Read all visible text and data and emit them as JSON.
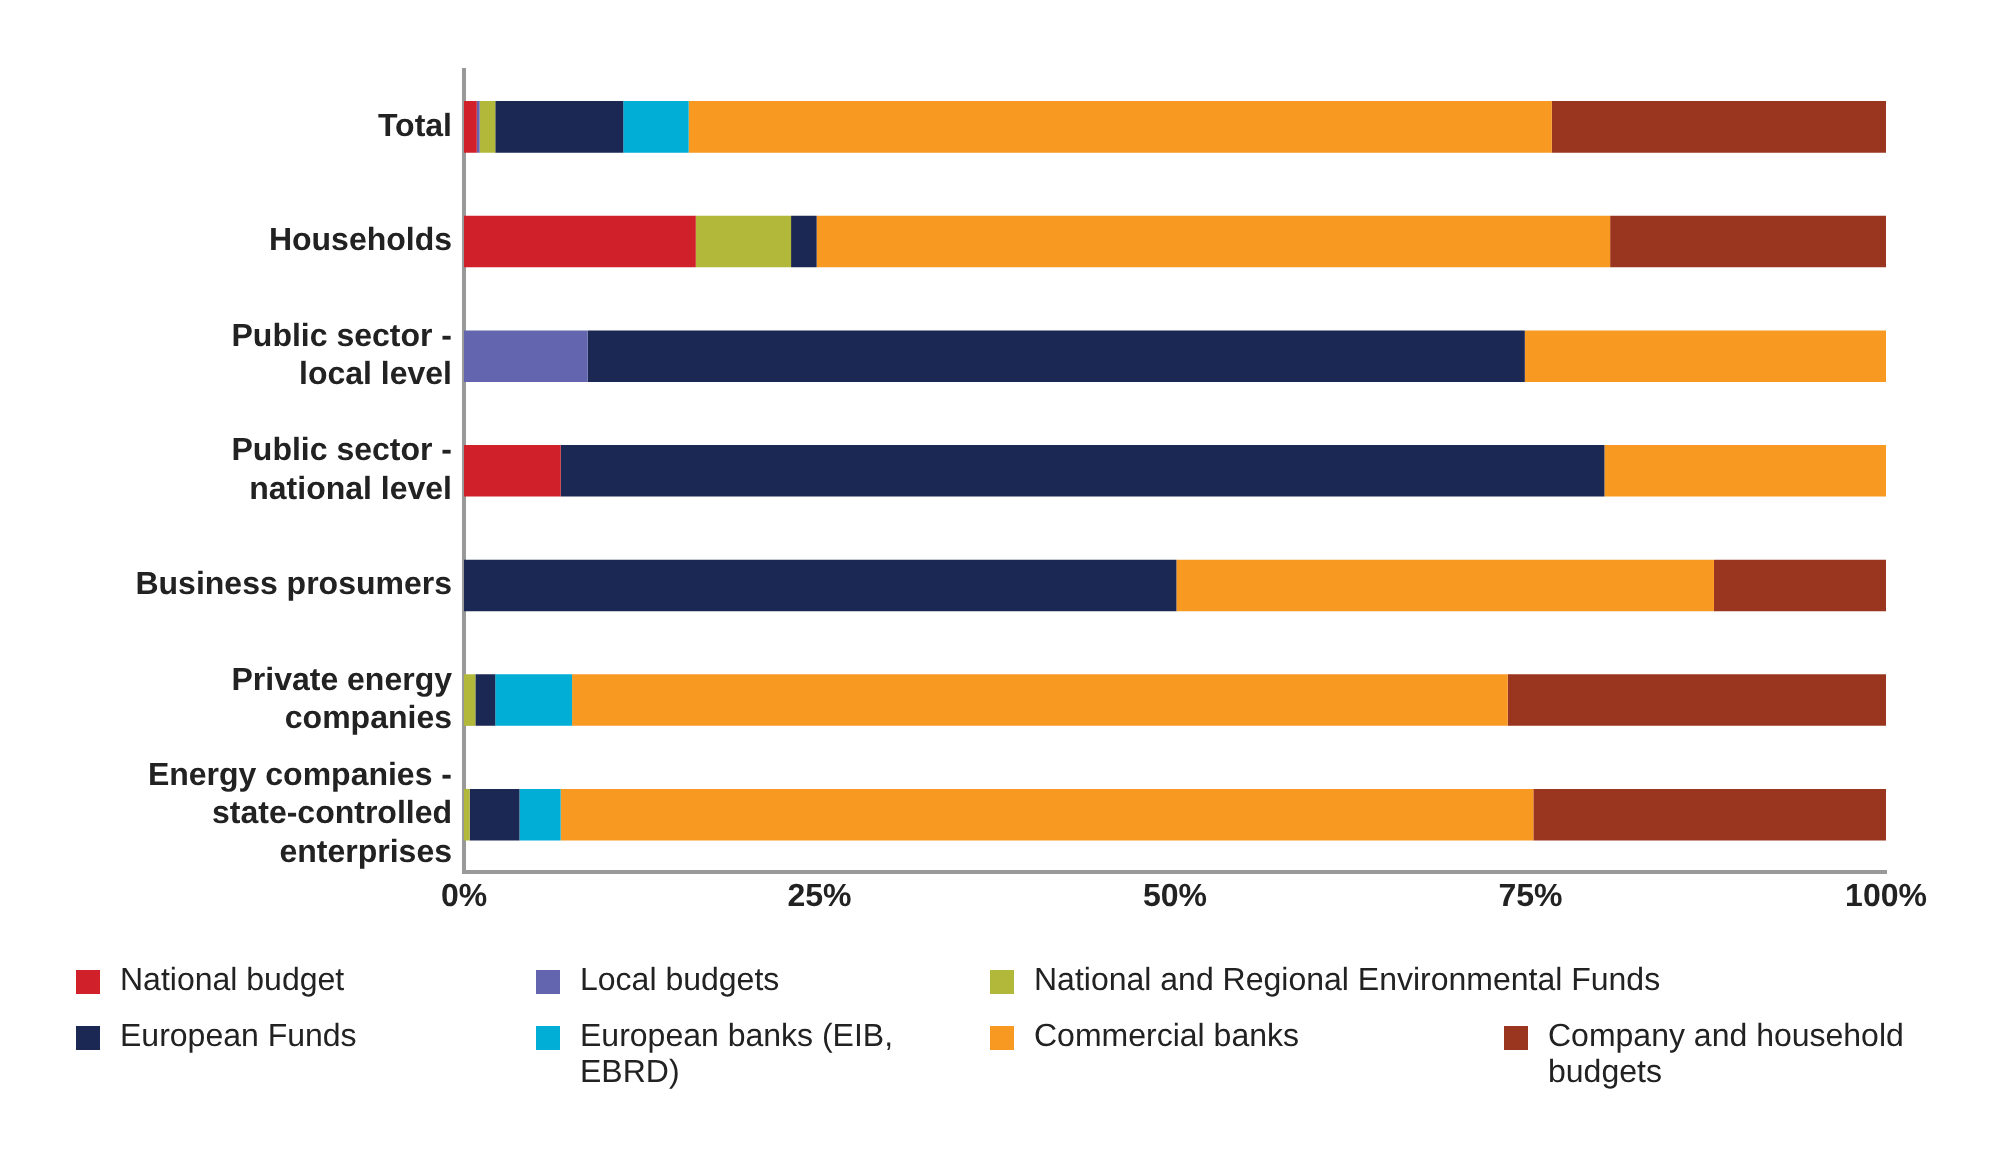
{
  "chart_data": {
    "type": "bar",
    "orientation": "horizontal",
    "stacked": true,
    "categories": [
      "Total",
      "Households",
      "Public sector - local level",
      "Public sector - national level",
      "Business prosumers",
      "Private energy companies",
      "Energy companies - state-controlled enterprises"
    ],
    "series": [
      {
        "name": "National budget",
        "color": "#d0202a",
        "values": [
          0.9,
          16.3,
          0,
          6.8,
          0,
          0,
          0
        ]
      },
      {
        "name": "Local budgets",
        "color": "#6366ae",
        "values": [
          0.2,
          0,
          8.7,
          0,
          0,
          0,
          0
        ]
      },
      {
        "name": "National and Regional Environmental Funds",
        "color": "#b2b83a",
        "values": [
          1.1,
          6.7,
          0,
          0,
          0,
          0.8,
          0.4
        ]
      },
      {
        "name": "European Funds",
        "color": "#1b2853",
        "values": [
          9.0,
          1.8,
          65.9,
          73.4,
          50.1,
          1.4,
          3.5
        ]
      },
      {
        "name": "European banks (EIB, EBRD)",
        "color": "#00aed6",
        "values": [
          4.6,
          0,
          0,
          0,
          0,
          5.4,
          2.9
        ]
      },
      {
        "name": "Commercial banks",
        "color": "#f89922",
        "values": [
          60.7,
          55.8,
          25.4,
          19.8,
          37.8,
          65.8,
          68.4
        ]
      },
      {
        "name": "Company and household budgets",
        "color": "#9a3620",
        "values": [
          23.5,
          19.4,
          0,
          0,
          12.1,
          26.6,
          24.8
        ]
      }
    ],
    "xlim": [
      0,
      100
    ],
    "xticks": [
      {
        "value": 0,
        "label": "0%"
      },
      {
        "value": 25,
        "label": "25%"
      },
      {
        "value": 50,
        "label": "50%"
      },
      {
        "value": 75,
        "label": "75%"
      },
      {
        "value": 100,
        "label": "100%"
      }
    ],
    "grid": false,
    "legend": "bottom"
  }
}
